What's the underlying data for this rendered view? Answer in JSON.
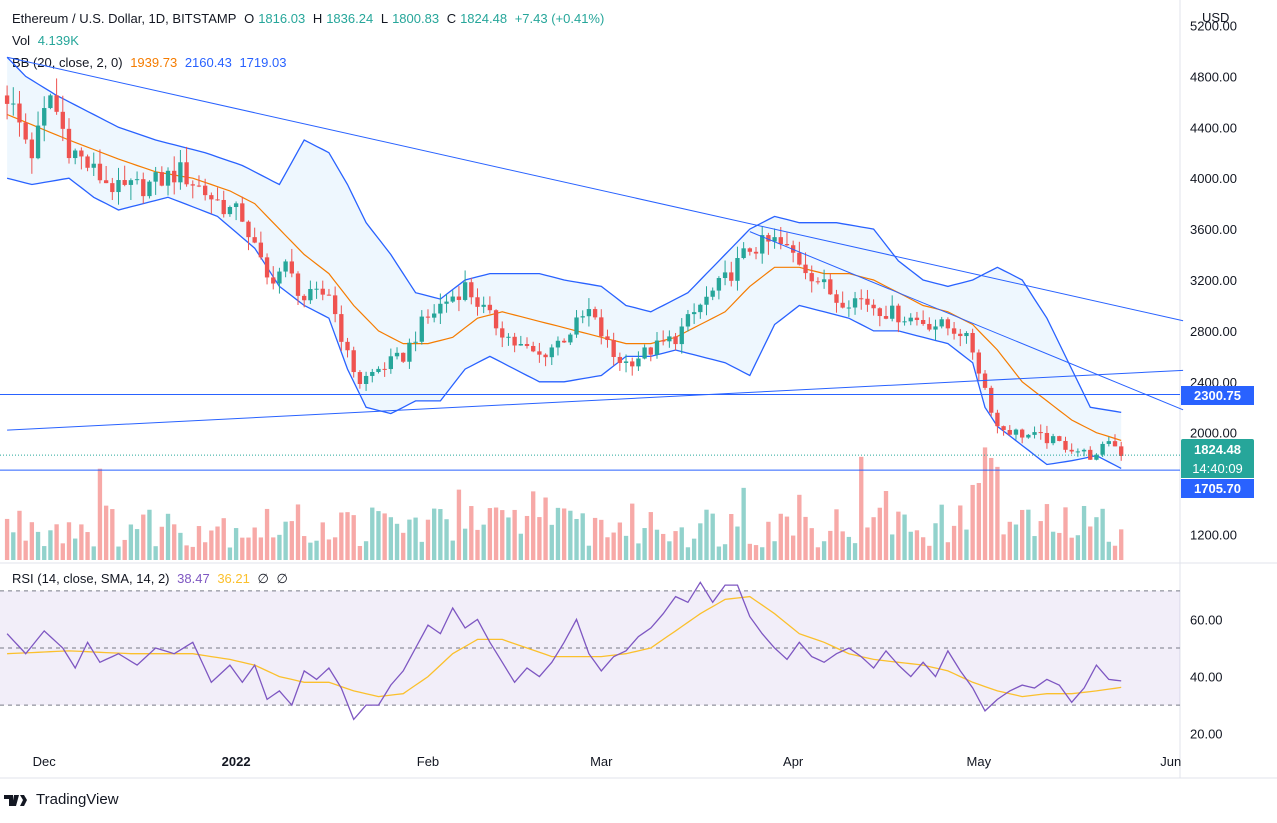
{
  "header": {
    "symbol": "Ethereum / U.S. Dollar, 1D, BITSTAMP",
    "o_label": "O",
    "o": "1816.03",
    "h_label": "H",
    "h": "1836.24",
    "l_label": "L",
    "l": "1800.83",
    "c_label": "C",
    "c": "1824.48",
    "change": "+7.43 (+0.41%)",
    "vol_label": "Vol",
    "vol": "4.139K",
    "bb_label": "BB (20, close, 2, 0)",
    "bb_mid": "1939.73",
    "bb_upper": "2160.43",
    "bb_lower": "1719.03",
    "rsi_label": "RSI (14, close, SMA, 14, 2)",
    "rsi": "38.47",
    "rsi_ma": "36.21",
    "rsi_extra1": "∅",
    "rsi_extra2": "∅"
  },
  "currency": "USD",
  "tags": {
    "level_upper": "2300.75",
    "last_price": "1824.48",
    "countdown": "14:40:09",
    "level_lower": "1705.70"
  },
  "footer": {
    "brand": "TradingView"
  },
  "colors": {
    "up": "#26a69a",
    "down": "#ef5350",
    "bb_mid": "#f57c00",
    "bb_band": "#2962ff",
    "rsi": "#7e57c2",
    "rsi_ma": "#fbc02d",
    "trend": "#2962ff"
  },
  "chart_data": [
    {
      "type": "candlestick",
      "title": "Ethereum / U.S. Dollar, 1D, BITSTAMP",
      "ylabel": "USD",
      "ylim": [
        1000,
        5400
      ],
      "y_ticks": [
        "5200.00",
        "4800.00",
        "4400.00",
        "4000.00",
        "3600.00",
        "3200.00",
        "2800.00",
        "2400.00",
        "2000.00",
        "1200.00"
      ],
      "x_ticks": [
        "Dec",
        "2022",
        "Feb",
        "Mar",
        "Apr",
        "May",
        "Jun"
      ],
      "x_tick_days": [
        6,
        37,
        68,
        96,
        127,
        157,
        188
      ],
      "days": 190,
      "anchors_close": [
        [
          0,
          4650
        ],
        [
          4,
          4200
        ],
        [
          7,
          4650
        ],
        [
          10,
          4250
        ],
        [
          14,
          4050
        ],
        [
          18,
          3900
        ],
        [
          23,
          3950
        ],
        [
          28,
          4050
        ],
        [
          33,
          3850
        ],
        [
          36,
          3750
        ],
        [
          38,
          3700
        ],
        [
          42,
          3200
        ],
        [
          45,
          3300
        ],
        [
          48,
          3050
        ],
        [
          52,
          3100
        ],
        [
          55,
          2600
        ],
        [
          57,
          2400
        ],
        [
          60,
          2500
        ],
        [
          64,
          2600
        ],
        [
          67,
          2850
        ],
        [
          70,
          3000
        ],
        [
          74,
          3150
        ],
        [
          78,
          2900
        ],
        [
          82,
          2700
        ],
        [
          86,
          2600
        ],
        [
          90,
          2750
        ],
        [
          94,
          2950
        ],
        [
          98,
          2600
        ],
        [
          100,
          2550
        ],
        [
          104,
          2650
        ],
        [
          108,
          2750
        ],
        [
          112,
          3000
        ],
        [
          116,
          3200
        ],
        [
          120,
          3450
        ],
        [
          124,
          3500
        ],
        [
          127,
          3400
        ],
        [
          130,
          3250
        ],
        [
          134,
          3050
        ],
        [
          138,
          3050
        ],
        [
          142,
          2950
        ],
        [
          146,
          2900
        ],
        [
          150,
          2850
        ],
        [
          154,
          2800
        ],
        [
          156,
          2650
        ],
        [
          158,
          2350
        ],
        [
          160,
          2050
        ],
        [
          163,
          2000
        ],
        [
          168,
          1950
        ],
        [
          172,
          1880
        ],
        [
          176,
          1800
        ],
        [
          178,
          1950
        ],
        [
          180,
          1840
        ]
      ],
      "bb_upper_points": [
        [
          0,
          4950
        ],
        [
          3,
          4800
        ],
        [
          8,
          4650
        ],
        [
          18,
          4400
        ],
        [
          24,
          4300
        ],
        [
          32,
          4200
        ],
        [
          38,
          4100
        ],
        [
          44,
          3950
        ],
        [
          48,
          4300
        ],
        [
          52,
          4200
        ],
        [
          55,
          3950
        ],
        [
          58,
          3650
        ],
        [
          62,
          3400
        ],
        [
          66,
          3100
        ],
        [
          70,
          3050
        ],
        [
          74,
          3200
        ],
        [
          78,
          3250
        ],
        [
          82,
          3250
        ],
        [
          86,
          3250
        ],
        [
          90,
          3200
        ],
        [
          96,
          3150
        ],
        [
          100,
          3000
        ],
        [
          104,
          2950
        ],
        [
          110,
          3100
        ],
        [
          114,
          3300
        ],
        [
          120,
          3600
        ],
        [
          124,
          3700
        ],
        [
          128,
          3650
        ],
        [
          134,
          3650
        ],
        [
          140,
          3600
        ],
        [
          144,
          3350
        ],
        [
          148,
          3200
        ],
        [
          152,
          3150
        ],
        [
          156,
          3200
        ],
        [
          160,
          3300
        ],
        [
          164,
          3200
        ],
        [
          168,
          2900
        ],
        [
          172,
          2500
        ],
        [
          175,
          2200
        ],
        [
          180,
          2160
        ]
      ],
      "bb_lower_points": [
        [
          0,
          4000
        ],
        [
          4,
          3950
        ],
        [
          10,
          4000
        ],
        [
          14,
          3850
        ],
        [
          18,
          3750
        ],
        [
          26,
          3850
        ],
        [
          34,
          3700
        ],
        [
          40,
          3450
        ],
        [
          44,
          3150
        ],
        [
          48,
          3000
        ],
        [
          52,
          2900
        ],
        [
          55,
          2500
        ],
        [
          58,
          2200
        ],
        [
          62,
          2150
        ],
        [
          66,
          2250
        ],
        [
          70,
          2250
        ],
        [
          74,
          2500
        ],
        [
          78,
          2600
        ],
        [
          82,
          2500
        ],
        [
          86,
          2400
        ],
        [
          90,
          2400
        ],
        [
          96,
          2450
        ],
        [
          100,
          2600
        ],
        [
          104,
          2600
        ],
        [
          108,
          2650
        ],
        [
          112,
          2600
        ],
        [
          116,
          2550
        ],
        [
          120,
          2450
        ],
        [
          124,
          2850
        ],
        [
          128,
          3000
        ],
        [
          132,
          2950
        ],
        [
          136,
          2900
        ],
        [
          140,
          2800
        ],
        [
          144,
          2800
        ],
        [
          148,
          2750
        ],
        [
          152,
          2700
        ],
        [
          156,
          2550
        ],
        [
          158,
          2200
        ],
        [
          160,
          2050
        ],
        [
          164,
          1900
        ],
        [
          168,
          1750
        ],
        [
          172,
          1780
        ],
        [
          176,
          1820
        ],
        [
          180,
          1720
        ]
      ],
      "bb_mid_points": [
        [
          0,
          4500
        ],
        [
          5,
          4400
        ],
        [
          10,
          4300
        ],
        [
          18,
          4150
        ],
        [
          24,
          4050
        ],
        [
          30,
          4000
        ],
        [
          36,
          3900
        ],
        [
          40,
          3800
        ],
        [
          44,
          3600
        ],
        [
          48,
          3400
        ],
        [
          52,
          3250
        ],
        [
          56,
          3000
        ],
        [
          60,
          2800
        ],
        [
          64,
          2700
        ],
        [
          68,
          2700
        ],
        [
          72,
          2750
        ],
        [
          76,
          2900
        ],
        [
          80,
          2950
        ],
        [
          84,
          2900
        ],
        [
          88,
          2850
        ],
        [
          92,
          2800
        ],
        [
          96,
          2750
        ],
        [
          100,
          2700
        ],
        [
          104,
          2700
        ],
        [
          108,
          2750
        ],
        [
          112,
          2850
        ],
        [
          116,
          2950
        ],
        [
          120,
          3150
        ],
        [
          124,
          3300
        ],
        [
          128,
          3300
        ],
        [
          132,
          3250
        ],
        [
          136,
          3250
        ],
        [
          140,
          3200
        ],
        [
          144,
          3100
        ],
        [
          148,
          3000
        ],
        [
          152,
          2950
        ],
        [
          156,
          2850
        ],
        [
          160,
          2650
        ],
        [
          164,
          2400
        ],
        [
          168,
          2250
        ],
        [
          172,
          2100
        ],
        [
          176,
          2000
        ],
        [
          180,
          1940
        ]
      ],
      "hlines": [
        2300.75,
        1705.7
      ],
      "trendlines": [
        {
          "from": [
            0,
            4950
          ],
          "to": [
            190,
            2880
          ]
        },
        {
          "from": [
            0,
            2020
          ],
          "to": [
            190,
            2490
          ]
        },
        {
          "from": [
            120,
            3580
          ],
          "to": [
            190,
            2180
          ]
        }
      ]
    },
    {
      "type": "line",
      "title": "RSI (14, close, SMA, 14, 2)",
      "ylim": [
        15,
        78
      ],
      "y_ticks": [
        "60.00",
        "40.00",
        "20.00"
      ],
      "band": [
        30,
        70
      ],
      "midline": 50,
      "series": [
        {
          "name": "RSI",
          "points": [
            [
              0,
              55
            ],
            [
              3,
              48
            ],
            [
              6,
              56
            ],
            [
              9,
              50
            ],
            [
              11,
              43
            ],
            [
              13,
              52
            ],
            [
              15,
              45
            ],
            [
              18,
              48
            ],
            [
              21,
              44
            ],
            [
              24,
              50
            ],
            [
              27,
              48
            ],
            [
              30,
              52
            ],
            [
              33,
              38
            ],
            [
              36,
              44
            ],
            [
              38,
              38
            ],
            [
              40,
              44
            ],
            [
              42,
              32
            ],
            [
              44,
              35
            ],
            [
              46,
              30
            ],
            [
              48,
              42
            ],
            [
              50,
              39
            ],
            [
              52,
              43
            ],
            [
              54,
              36
            ],
            [
              56,
              25
            ],
            [
              58,
              30
            ],
            [
              60,
              30
            ],
            [
              62,
              37
            ],
            [
              64,
              42
            ],
            [
              66,
              50
            ],
            [
              68,
              58
            ],
            [
              70,
              55
            ],
            [
              72,
              64
            ],
            [
              74,
              57
            ],
            [
              76,
              60
            ],
            [
              78,
              52
            ],
            [
              80,
              45
            ],
            [
              82,
              38
            ],
            [
              84,
              43
            ],
            [
              86,
              40
            ],
            [
              88,
              45
            ],
            [
              90,
              52
            ],
            [
              92,
              60
            ],
            [
              94,
              48
            ],
            [
              96,
              42
            ],
            [
              98,
              47
            ],
            [
              100,
              49
            ],
            [
              102,
              54
            ],
            [
              104,
              57
            ],
            [
              106,
              62
            ],
            [
              108,
              68
            ],
            [
              110,
              66
            ],
            [
              112,
              73
            ],
            [
              114,
              66
            ],
            [
              116,
              72
            ],
            [
              118,
              72
            ],
            [
              120,
              61
            ],
            [
              122,
              55
            ],
            [
              124,
              50
            ],
            [
              126,
              46
            ],
            [
              128,
              52
            ],
            [
              130,
              47
            ],
            [
              132,
              45
            ],
            [
              134,
              48
            ],
            [
              136,
              50
            ],
            [
              138,
              47
            ],
            [
              140,
              43
            ],
            [
              142,
              49
            ],
            [
              144,
              44
            ],
            [
              146,
              40
            ],
            [
              148,
              45
            ],
            [
              150,
              40
            ],
            [
              152,
              49
            ],
            [
              154,
              42
            ],
            [
              156,
              36
            ],
            [
              158,
              28
            ],
            [
              160,
              32
            ],
            [
              162,
              35
            ],
            [
              164,
              37
            ],
            [
              166,
              36
            ],
            [
              168,
              39
            ],
            [
              170,
              37
            ],
            [
              172,
              31
            ],
            [
              174,
              36
            ],
            [
              176,
              44
            ],
            [
              178,
              39
            ],
            [
              180,
              38.47
            ]
          ]
        },
        {
          "name": "RSI-based MA",
          "points": [
            [
              0,
              48
            ],
            [
              10,
              49
            ],
            [
              20,
              48
            ],
            [
              30,
              48
            ],
            [
              36,
              46
            ],
            [
              40,
              44
            ],
            [
              44,
              40
            ],
            [
              48,
              38
            ],
            [
              52,
              38
            ],
            [
              56,
              35
            ],
            [
              60,
              33
            ],
            [
              64,
              34
            ],
            [
              68,
              40
            ],
            [
              72,
              48
            ],
            [
              76,
              53
            ],
            [
              80,
              53
            ],
            [
              84,
              50
            ],
            [
              88,
              47
            ],
            [
              92,
              47
            ],
            [
              96,
              47
            ],
            [
              100,
              48
            ],
            [
              104,
              50
            ],
            [
              108,
              56
            ],
            [
              112,
              62
            ],
            [
              116,
              67
            ],
            [
              120,
              68
            ],
            [
              124,
              62
            ],
            [
              128,
              55
            ],
            [
              132,
              52
            ],
            [
              136,
              48
            ],
            [
              140,
              46
            ],
            [
              144,
              45
            ],
            [
              148,
              44
            ],
            [
              152,
              42
            ],
            [
              156,
              38
            ],
            [
              160,
              35
            ],
            [
              164,
              33
            ],
            [
              168,
              34
            ],
            [
              172,
              34
            ],
            [
              176,
              35
            ],
            [
              180,
              36.21
            ]
          ]
        }
      ]
    }
  ]
}
